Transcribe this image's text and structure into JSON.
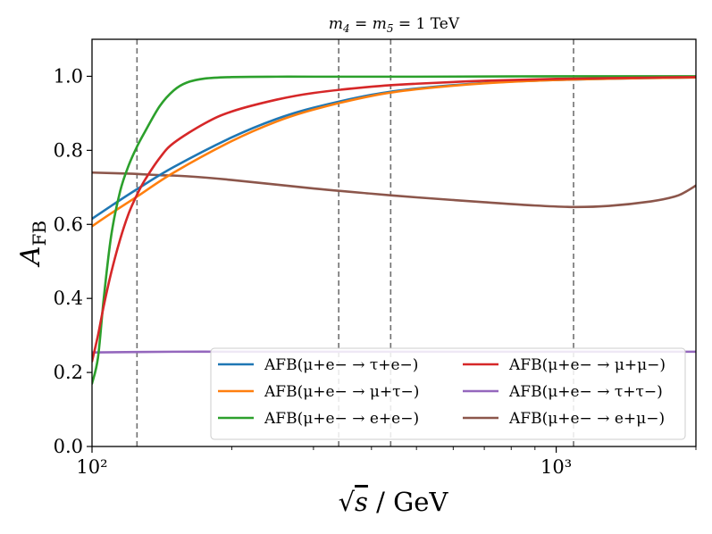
{
  "chart_data": {
    "type": "line",
    "title": "m4 = m5 = 1 TeV",
    "xlabel": "√s / GeV",
    "ylabel": "AFB",
    "xscale": "log",
    "xlim": [
      100,
      2000
    ],
    "ylim": [
      0.0,
      1.1
    ],
    "xticks": [
      {
        "value": 100,
        "label": "10²"
      },
      {
        "value": 1000,
        "label": "10³"
      }
    ],
    "yticks": [
      0.0,
      0.2,
      0.4,
      0.6,
      0.8,
      1.0
    ],
    "ytick_labels": [
      "0.0",
      "0.2",
      "0.4",
      "0.6",
      "0.8",
      "1.0"
    ],
    "vlines": [
      125,
      340,
      440,
      1090
    ],
    "legend": "lower-right, two columns",
    "grid": false,
    "series": [
      {
        "name": "AFB(μ+e− → τ+e−)",
        "color": "#1f77b4",
        "x": [
          100,
          110,
          125,
          150,
          200,
          250,
          300,
          400,
          500,
          700,
          1000,
          1500,
          2000
        ],
        "y": [
          0.615,
          0.65,
          0.695,
          0.755,
          0.835,
          0.885,
          0.915,
          0.95,
          0.967,
          0.982,
          0.99,
          0.995,
          0.997
        ]
      },
      {
        "name": "AFB(μ+e− → μ+τ−)",
        "color": "#ff7f0e",
        "x": [
          100,
          110,
          125,
          150,
          200,
          250,
          300,
          400,
          500,
          700,
          1000,
          1500,
          2000
        ],
        "y": [
          0.595,
          0.63,
          0.675,
          0.74,
          0.825,
          0.878,
          0.91,
          0.947,
          0.965,
          0.981,
          0.99,
          0.995,
          0.997
        ]
      },
      {
        "name": "AFB(μ+e− → e+e−)",
        "color": "#2ca02c",
        "x": [
          100,
          103,
          106,
          110,
          115,
          120,
          125,
          130,
          140,
          150,
          160,
          175,
          200,
          250,
          300,
          500,
          1000,
          2000
        ],
        "y": [
          0.17,
          0.24,
          0.4,
          0.57,
          0.69,
          0.76,
          0.81,
          0.85,
          0.92,
          0.962,
          0.983,
          0.994,
          0.998,
          0.999,
          0.999,
          0.999,
          1.0,
          1.0
        ]
      },
      {
        "name": "AFB(μ+e− → μ+μ−)",
        "color": "#d62728",
        "x": [
          100,
          103,
          106,
          110,
          115,
          120,
          125,
          130,
          140,
          150,
          175,
          200,
          250,
          300,
          400,
          500,
          700,
          1000,
          1500,
          2000
        ],
        "y": [
          0.23,
          0.3,
          0.38,
          0.47,
          0.56,
          0.63,
          0.68,
          0.72,
          0.78,
          0.82,
          0.873,
          0.905,
          0.937,
          0.955,
          0.972,
          0.98,
          0.988,
          0.993,
          0.996,
          0.998
        ]
      },
      {
        "name": "AFB(μ+e− → τ+τ−)",
        "color": "#9467bd",
        "x": [
          100,
          150,
          200,
          300,
          500,
          1000,
          2000
        ],
        "y": [
          0.254,
          0.256,
          0.256,
          0.256,
          0.256,
          0.256,
          0.256
        ]
      },
      {
        "name": "AFB(μ+e− → e+μ−)",
        "color": "#8c564b",
        "x": [
          100,
          120,
          140,
          160,
          200,
          300,
          400,
          500,
          700,
          900,
          1090,
          1300,
          1600,
          1800,
          1900,
          2000
        ],
        "y": [
          0.74,
          0.737,
          0.733,
          0.73,
          0.72,
          0.697,
          0.683,
          0.673,
          0.66,
          0.651,
          0.647,
          0.65,
          0.662,
          0.675,
          0.688,
          0.705
        ]
      }
    ]
  }
}
